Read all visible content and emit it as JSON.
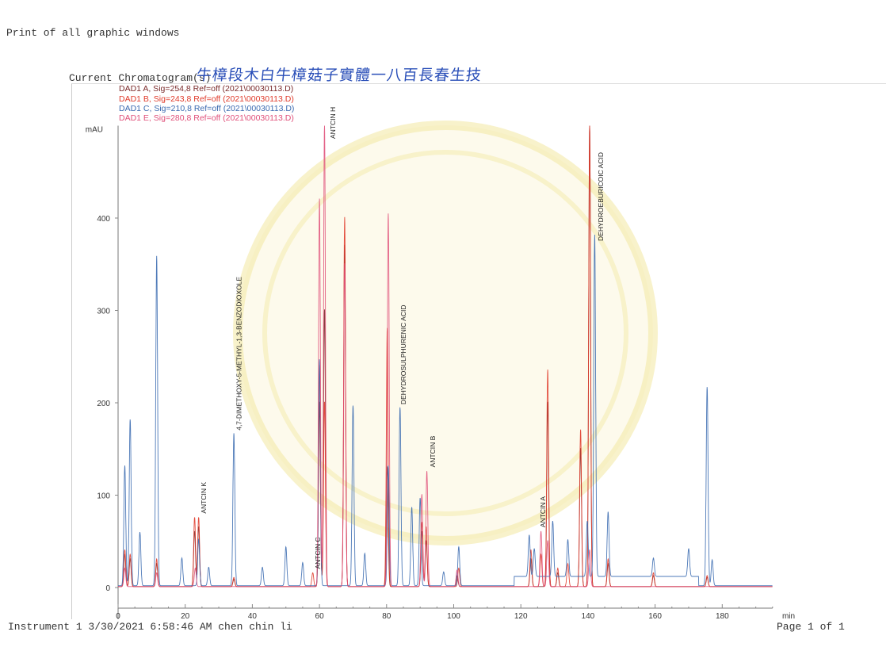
{
  "header": {
    "title": "Print of all graphic windows",
    "section_label": "Current Chromatogram(s)",
    "handwritten_note": "牛樟段木白牛樟菇子實體一八百長春生技"
  },
  "footer": {
    "instrument": "Instrument 1 3/30/2021 6:58:46 AM chen chin li",
    "page": "Page 1 of 1"
  },
  "chart_data": {
    "type": "line",
    "title": "",
    "xlabel": "min",
    "ylabel": "mAU",
    "xlim": [
      0,
      195
    ],
    "ylim": [
      -10,
      500
    ],
    "x_ticks": [
      0,
      20,
      40,
      60,
      80,
      100,
      120,
      140,
      160,
      180
    ],
    "x_tick_labels": [
      "0",
      "20",
      "40",
      "60",
      "80",
      "100",
      "120",
      "140",
      "160",
      "180"
    ],
    "y_ticks": [
      0,
      100,
      200,
      300,
      400
    ],
    "grid": false,
    "legend_position": "top-left",
    "series": [
      {
        "name": "DAD1 A, Sig=254,8 Ref=off (2021\\00030113.D)",
        "color": "#7a2a2a",
        "peaks": [
          [
            2,
            35
          ],
          [
            3.6,
            30
          ],
          [
            11.5,
            25
          ],
          [
            22.8,
            60
          ],
          [
            24,
            65
          ],
          [
            34.5,
            8
          ],
          [
            60,
            200
          ],
          [
            61.5,
            300
          ],
          [
            67.5,
            370
          ],
          [
            80.2,
            130
          ],
          [
            90.5,
            60
          ],
          [
            91.8,
            50
          ],
          [
            101,
            12
          ],
          [
            123,
            30
          ],
          [
            128,
            200
          ],
          [
            131,
            15
          ],
          [
            137.8,
            150
          ],
          [
            140.5,
            500
          ],
          [
            146,
            25
          ],
          [
            159.5,
            12
          ],
          [
            175.5,
            10
          ]
        ]
      },
      {
        "name": "DAD1 B, Sig=243,8 Ref=off (2021\\00030113.D)",
        "color": "#e03a2a",
        "peaks": [
          [
            2,
            40
          ],
          [
            3.6,
            35
          ],
          [
            11.5,
            30
          ],
          [
            22.8,
            75
          ],
          [
            24,
            75
          ],
          [
            34.5,
            10
          ],
          [
            58,
            15
          ],
          [
            60,
            240
          ],
          [
            61.5,
            200
          ],
          [
            67.5,
            400
          ],
          [
            80.2,
            280
          ],
          [
            90.5,
            70
          ],
          [
            91.8,
            65
          ],
          [
            101.5,
            20
          ],
          [
            123,
            40
          ],
          [
            126,
            35
          ],
          [
            128,
            235
          ],
          [
            131,
            20
          ],
          [
            134,
            25
          ],
          [
            137.8,
            170
          ],
          [
            140.5,
            500
          ],
          [
            146,
            30
          ],
          [
            159.5,
            15
          ],
          [
            175.5,
            12
          ]
        ]
      },
      {
        "name": "DAD1 C, Sig=210,8 Ref=off (2021\\00030113.D)",
        "color": "#3a6ab0",
        "peaks": [
          [
            2,
            130
          ],
          [
            3.6,
            180
          ],
          [
            6.5,
            58
          ],
          [
            11.5,
            357
          ],
          [
            19,
            30
          ],
          [
            24,
            50
          ],
          [
            27,
            20
          ],
          [
            34.5,
            165
          ],
          [
            43,
            20
          ],
          [
            50,
            42
          ],
          [
            55,
            25
          ],
          [
            60,
            245
          ],
          [
            70,
            195
          ],
          [
            73.5,
            35
          ],
          [
            80.5,
            130
          ],
          [
            84,
            193
          ],
          [
            87.5,
            85
          ],
          [
            90,
            95
          ],
          [
            97,
            15
          ],
          [
            101.5,
            42
          ],
          [
            122.5,
            45
          ],
          [
            124,
            30
          ],
          [
            129.5,
            60
          ],
          [
            134,
            40
          ],
          [
            139.8,
            60
          ],
          [
            142,
            370
          ],
          [
            146,
            70
          ],
          [
            159.5,
            20
          ],
          [
            170,
            30
          ],
          [
            175.5,
            215
          ],
          [
            177,
            28
          ]
        ]
      },
      {
        "name": "DAD1 E, Sig=280,8 Ref=off (2021\\00030113.D)",
        "color": "#e0507a",
        "peaks": [
          [
            2,
            20
          ],
          [
            11.5,
            15
          ],
          [
            23,
            20
          ],
          [
            60,
            420
          ],
          [
            61.5,
            500
          ],
          [
            67.5,
            350
          ],
          [
            80.5,
            404
          ],
          [
            90.5,
            100
          ],
          [
            92,
            125
          ],
          [
            101,
            18
          ],
          [
            126,
            60
          ],
          [
            128,
            50
          ],
          [
            140.5,
            40
          ]
        ]
      }
    ],
    "annotations": [
      {
        "label": "ANTCIN K",
        "x": 24
      },
      {
        "label": "4,7-DIMETHOXY-5-METHYL-1,3-BENZODIOXOLE",
        "x": 34.5
      },
      {
        "label": "ANTCIN C",
        "x": 58
      },
      {
        "label": "ANTCIN H",
        "x": 62.5
      },
      {
        "label": "DEHYDROSULPHURENIC ACID",
        "x": 83.5
      },
      {
        "label": "ANTCIN B",
        "x": 92.2
      },
      {
        "label": "ANTCIN A",
        "x": 125
      },
      {
        "label": "DEHYDROEBURICOIC ACID",
        "x": 142.3
      }
    ]
  }
}
